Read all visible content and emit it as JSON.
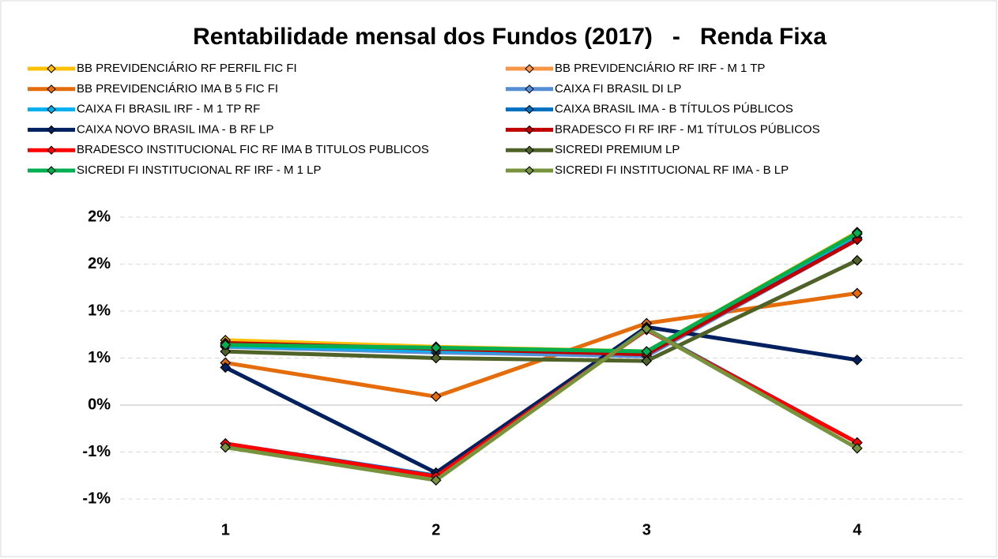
{
  "chart_data": {
    "type": "line",
    "title": "Rentabilidade mensal dos Fundos (2017)   -   Renda Fixa",
    "categories": [
      "1",
      "2",
      "3",
      "4"
    ],
    "ylim": [
      -1,
      2
    ],
    "yticks": [
      {
        "value": -1,
        "label": "-1%"
      },
      {
        "value": -0.5,
        "label": "-1%"
      },
      {
        "value": 0,
        "label": "0%"
      },
      {
        "value": 0.5,
        "label": "1%"
      },
      {
        "value": 1,
        "label": "1%"
      },
      {
        "value": 1.5,
        "label": "2%"
      },
      {
        "value": 2,
        "label": "2%"
      }
    ],
    "grid": true,
    "series": [
      {
        "name": "BB PREVIDENCIÁRIO RF PERFIL FIC FI",
        "color": "#ffc000",
        "values": [
          0.69,
          0.62,
          0.57,
          1.84
        ]
      },
      {
        "name": "BB PREVIDENCIÁRIO RF IRF - M 1 TP",
        "color": "#f79646",
        "values": [
          0.66,
          0.61,
          0.56,
          1.82
        ]
      },
      {
        "name": "BB PREVIDENCIÁRIO IMA B 5 FIC FI",
        "color": "#e46c0a",
        "values": [
          0.45,
          0.09,
          0.87,
          1.19
        ]
      },
      {
        "name": "CAIXA FI BRASIL DI LP",
        "color": "#558ed5",
        "values": [
          0.62,
          0.56,
          0.52,
          1.76
        ]
      },
      {
        "name": "CAIXA FI BRASIL IRF - M 1 TP RF",
        "color": "#00b0f0",
        "values": [
          0.63,
          0.58,
          0.55,
          1.78
        ]
      },
      {
        "name": "CAIXA BRASIL IMA - B TÍTULOS PÚBLICOS",
        "color": "#0070c0",
        "values": [
          -0.41,
          -0.75,
          0.81,
          -0.4
        ]
      },
      {
        "name": "CAIXA NOVO BRASIL IMA - B RF LP",
        "color": "#002060",
        "values": [
          0.4,
          -0.72,
          0.83,
          0.48
        ]
      },
      {
        "name": "BRADESCO FI RF IRF - M1 TÍTULOS PÚBLICOS",
        "color": "#c00000",
        "values": [
          0.66,
          0.6,
          0.54,
          1.76
        ]
      },
      {
        "name": "BRADESCO INSTITUCIONAL FIC RF IMA B TITULOS PUBLICOS",
        "color": "#ff0000",
        "values": [
          -0.41,
          -0.76,
          0.8,
          -0.4
        ]
      },
      {
        "name": "SICREDI PREMIUM LP",
        "color": "#4f6228",
        "values": [
          0.57,
          0.5,
          0.47,
          1.54
        ]
      },
      {
        "name": "SICREDI FI INSTITUCIONAL RF IRF - M 1 LP",
        "color": "#00b050",
        "values": [
          0.64,
          0.61,
          0.57,
          1.83
        ]
      },
      {
        "name": "SICREDI FI INSTITUCIONAL RF IMA - B LP",
        "color": "#77933c",
        "values": [
          -0.45,
          -0.8,
          0.81,
          -0.46
        ]
      }
    ]
  }
}
